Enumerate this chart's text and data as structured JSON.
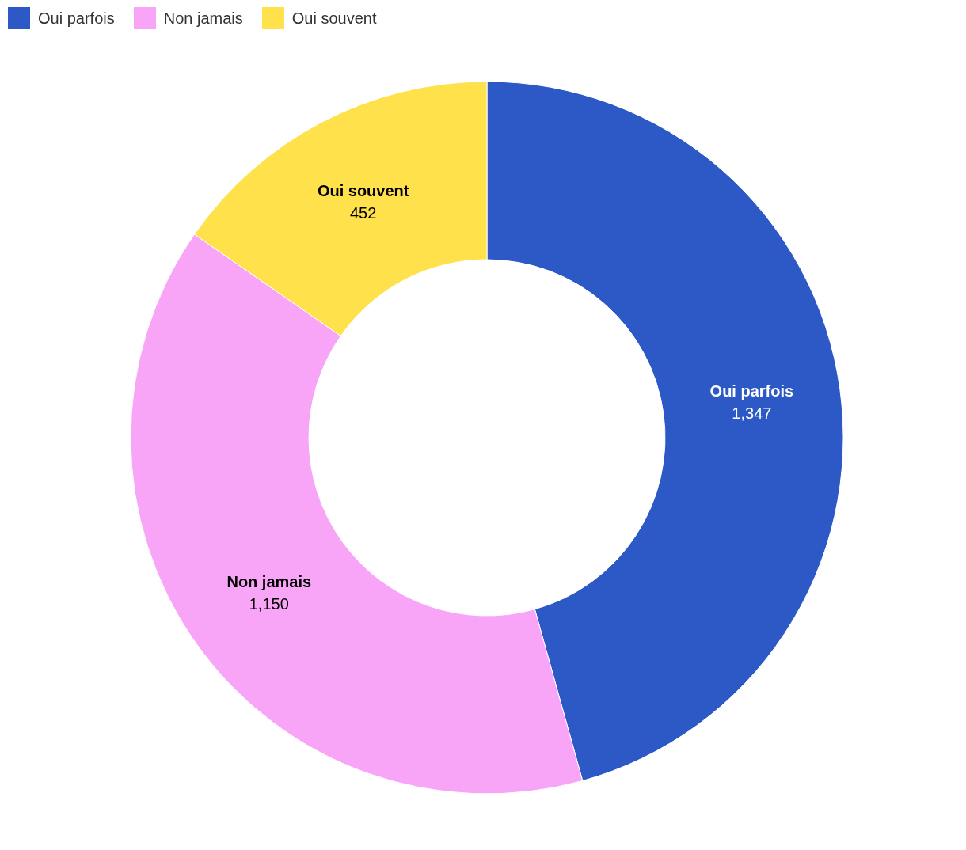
{
  "chart_data": {
    "type": "donut",
    "categories": [
      "Oui parfois",
      "Non jamais",
      "Oui souvent"
    ],
    "values": [
      1347,
      1150,
      452
    ],
    "colors": [
      "#2c59c6",
      "#f8a5f7",
      "#ffe14b"
    ],
    "value_labels": [
      "1,347",
      "1,150",
      "452"
    ],
    "legend": "top left"
  }
}
